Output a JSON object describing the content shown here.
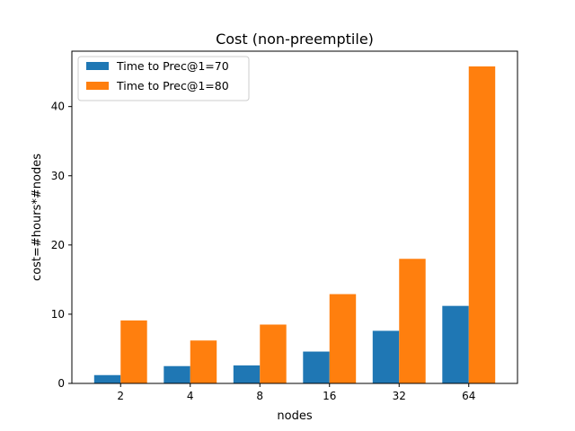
{
  "chart_data": {
    "type": "bar",
    "title": "Cost (non-preemptile)",
    "xlabel": "nodes",
    "ylabel": "cost=#hours*#nodes",
    "categories": [
      "2",
      "4",
      "8",
      "16",
      "32",
      "64"
    ],
    "series": [
      {
        "name": "Time to Prec@1=70",
        "color": "#1f77b4",
        "values": [
          1.2,
          2.5,
          2.6,
          4.6,
          7.6,
          11.2
        ]
      },
      {
        "name": "Time to Prec@1=80",
        "color": "#ff7f0e",
        "values": [
          9.1,
          6.2,
          8.5,
          12.9,
          18.0,
          45.8
        ]
      }
    ],
    "ylim": [
      0,
      48
    ],
    "yticks": [
      0,
      10,
      20,
      30,
      40
    ],
    "grid": false,
    "legend_position": "top-left"
  }
}
